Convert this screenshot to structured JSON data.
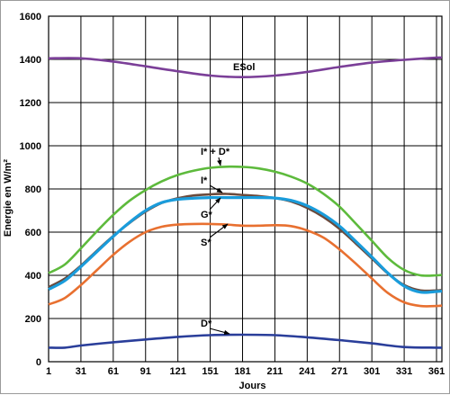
{
  "chart_data": {
    "type": "line",
    "xlabel": "Jours",
    "ylabel": "Energie en W/m²",
    "xlim": [
      1,
      366
    ],
    "ylim": [
      0,
      1600
    ],
    "xticks": [
      1,
      31,
      61,
      91,
      121,
      151,
      181,
      211,
      241,
      271,
      301,
      331,
      361
    ],
    "yticks": [
      0,
      200,
      400,
      600,
      800,
      1000,
      1200,
      1400,
      1600
    ],
    "grid": true,
    "series": [
      {
        "name": "ESol",
        "color": "#7b3f98",
        "x": [
          1,
          31,
          61,
          91,
          121,
          151,
          181,
          211,
          241,
          271,
          301,
          331,
          361,
          366
        ],
        "y": [
          1405,
          1405,
          1390,
          1368,
          1345,
          1325,
          1318,
          1325,
          1342,
          1365,
          1385,
          1398,
          1408,
          1408
        ]
      },
      {
        "name": "I* + D*",
        "color": "#5dba3c",
        "x": [
          1,
          16,
          31,
          46,
          61,
          76,
          91,
          106,
          121,
          136,
          151,
          166,
          181,
          196,
          211,
          226,
          241,
          256,
          271,
          286,
          301,
          316,
          331,
          346,
          361,
          366
        ],
        "y": [
          410,
          450,
          525,
          605,
          680,
          745,
          795,
          835,
          865,
          885,
          898,
          903,
          902,
          895,
          880,
          857,
          825,
          778,
          718,
          640,
          560,
          480,
          425,
          400,
          400,
          402
        ]
      },
      {
        "name": "I*",
        "color": "#6b4a3c",
        "x": [
          1,
          16,
          31,
          46,
          61,
          76,
          91,
          106,
          121,
          136,
          151,
          166,
          181,
          196,
          211,
          226,
          241,
          256,
          271,
          286,
          301,
          316,
          331,
          346,
          361,
          366
        ],
        "y": [
          345,
          385,
          445,
          515,
          582,
          642,
          695,
          735,
          757,
          770,
          775,
          777,
          772,
          767,
          758,
          742,
          712,
          670,
          615,
          548,
          478,
          408,
          355,
          330,
          330,
          332
        ]
      },
      {
        "name": "G*",
        "color": "#1a9cdb",
        "x": [
          1,
          16,
          31,
          46,
          61,
          76,
          91,
          106,
          121,
          136,
          151,
          166,
          181,
          196,
          211,
          226,
          241,
          256,
          271,
          286,
          301,
          316,
          331,
          346,
          361,
          366
        ],
        "y": [
          335,
          375,
          440,
          510,
          580,
          645,
          700,
          737,
          752,
          757,
          760,
          760,
          760,
          760,
          758,
          747,
          722,
          682,
          628,
          558,
          485,
          410,
          350,
          322,
          325,
          327
        ]
      },
      {
        "name": "S*",
        "color": "#e87030",
        "x": [
          1,
          16,
          31,
          46,
          61,
          76,
          91,
          106,
          121,
          136,
          151,
          166,
          181,
          196,
          211,
          226,
          241,
          256,
          271,
          286,
          301,
          316,
          331,
          346,
          361,
          366
        ],
        "y": [
          265,
          295,
          355,
          425,
          495,
          555,
          600,
          625,
          635,
          638,
          638,
          635,
          630,
          630,
          632,
          628,
          608,
          575,
          520,
          455,
          385,
          318,
          275,
          258,
          258,
          260
        ]
      },
      {
        "name": "D*",
        "color": "#2a3e9a",
        "x": [
          1,
          16,
          31,
          61,
          91,
          121,
          151,
          181,
          211,
          241,
          271,
          301,
          331,
          361,
          366
        ],
        "y": [
          65,
          65,
          75,
          90,
          103,
          115,
          123,
          125,
          123,
          113,
          100,
          85,
          68,
          65,
          65
        ]
      }
    ],
    "annotations": [
      {
        "text": "ESol",
        "series": "ESol"
      },
      {
        "text": "I* + D*",
        "series": "I* + D*"
      },
      {
        "text": "I*",
        "series": "I*"
      },
      {
        "text": "G*",
        "series": "G*"
      },
      {
        "text": "S*",
        "series": "S*"
      },
      {
        "text": "D*",
        "series": "D*"
      }
    ]
  }
}
